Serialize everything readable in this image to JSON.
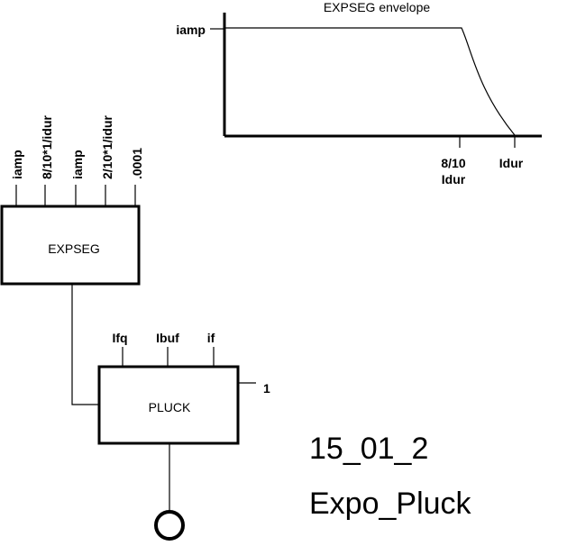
{
  "envelope": {
    "title": "EXPSEG envelope",
    "y_label": "iamp",
    "x_tick1": [
      "8/10",
      "Idur"
    ],
    "x_tick2": "Idur"
  },
  "expseg": {
    "label": "EXPSEG",
    "inputs": [
      "iamp",
      "8/10*1/idur",
      "iamp",
      "2/10*1/idur",
      ".0001"
    ]
  },
  "pluck": {
    "label": "PLUCK",
    "inputs": [
      "Ifq",
      "Ibuf",
      "if"
    ],
    "side_value": "1"
  },
  "caption": {
    "id": "15_01_2",
    "name": "Expo_Pluck"
  }
}
